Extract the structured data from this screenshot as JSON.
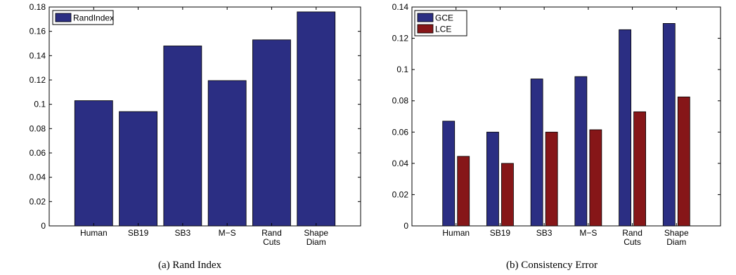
{
  "chart_data": [
    {
      "type": "bar",
      "categories": [
        "Human",
        "SB19",
        "SB3",
        "M−S",
        "Rand Cuts",
        "Shape Diam"
      ],
      "category_lines": [
        [
          "Human"
        ],
        [
          "SB19"
        ],
        [
          "SB3"
        ],
        [
          "M−S"
        ],
        [
          "Rand",
          "Cuts"
        ],
        [
          "Shape",
          "Diam"
        ]
      ],
      "series": [
        {
          "name": "RandIndex",
          "values": [
            0.103,
            0.094,
            0.148,
            0.1195,
            0.153,
            0.176
          ],
          "color": "#2b2e83"
        }
      ],
      "ylim": [
        0,
        0.18
      ],
      "yticks": [
        0,
        0.02,
        0.04,
        0.06,
        0.08,
        0.1,
        0.12,
        0.14,
        0.16,
        0.18
      ],
      "ytick_labels": [
        "0",
        "0.02",
        "0.04",
        "0.06",
        "0.08",
        "0.1",
        "0.12",
        "0.14",
        "0.16",
        "0.18"
      ],
      "legend_position": "top-left",
      "caption": "(a)  Rand Index"
    },
    {
      "type": "bar",
      "categories": [
        "Human",
        "SB19",
        "SB3",
        "M−S",
        "Rand Cuts",
        "Shape Diam"
      ],
      "category_lines": [
        [
          "Human"
        ],
        [
          "SB19"
        ],
        [
          "SB3"
        ],
        [
          "M−S"
        ],
        [
          "Rand",
          "Cuts"
        ],
        [
          "Shape",
          "Diam"
        ]
      ],
      "series": [
        {
          "name": "GCE",
          "values": [
            0.067,
            0.06,
            0.094,
            0.0955,
            0.1255,
            0.1295
          ],
          "color": "#2b2e83"
        },
        {
          "name": "LCE",
          "values": [
            0.0445,
            0.04,
            0.06,
            0.0615,
            0.073,
            0.0825
          ],
          "color": "#861618"
        }
      ],
      "ylim": [
        0,
        0.14
      ],
      "yticks": [
        0,
        0.02,
        0.04,
        0.06,
        0.08,
        0.1,
        0.12,
        0.14
      ],
      "ytick_labels": [
        "0",
        "0.02",
        "0.04",
        "0.06",
        "0.08",
        "0.1",
        "0.12",
        "0.14"
      ],
      "legend_position": "top-left",
      "caption": "(b)  Consistency Error"
    }
  ]
}
